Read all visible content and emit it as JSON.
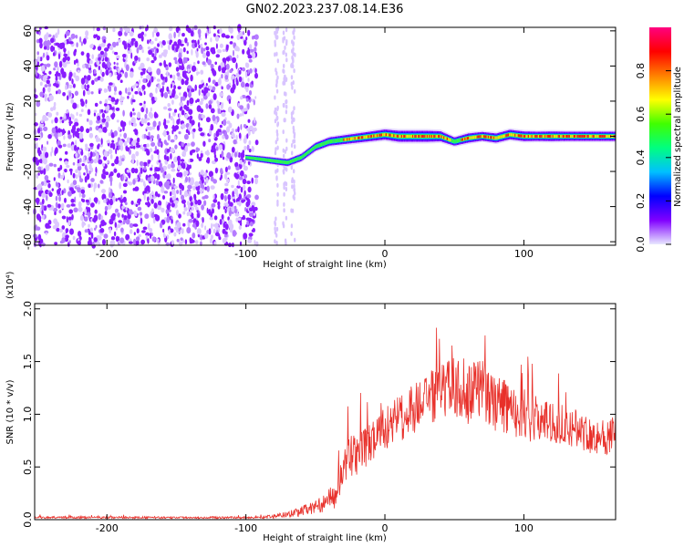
{
  "page": {
    "title": "GN02.2023.237.08.14.E36"
  },
  "chart_data": [
    {
      "type": "heatmap",
      "name": "spectrogram",
      "xlabel": "Height of straight line (km)",
      "ylabel": "Frequency (Hz)",
      "xlim": [
        -252,
        166
      ],
      "ylim": [
        -62,
        62
      ],
      "xticks": [
        -200,
        -100,
        0,
        100
      ],
      "yticks": [
        -60,
        -40,
        -20,
        0,
        20,
        40,
        60
      ],
      "colorbar": {
        "label": "Normalized spectral amplitude",
        "range": [
          0,
          1
        ],
        "ticks": [
          "0.0",
          "0.2",
          "0.4",
          "0.6",
          "0.8"
        ],
        "colormap": [
          "#e8e8ff",
          "#8000ff",
          "#0000ff",
          "#00c0ff",
          "#00ff80",
          "#40ff00",
          "#ffff00",
          "#ff8000",
          "#ff0000",
          "#ff0080"
        ]
      },
      "noise_region": {
        "x": [
          -252,
          -92
        ],
        "amplitude": 0.2
      },
      "ridge": {
        "x": [
          -100,
          -90,
          -80,
          -70,
          -60,
          -50,
          -40,
          -30,
          -20,
          -10,
          0,
          10,
          20,
          30,
          40,
          50,
          60,
          70,
          80,
          90,
          100,
          110,
          120,
          130,
          140,
          150,
          166
        ],
        "frequency": [
          -12,
          -13,
          -14,
          -15,
          -12,
          -6,
          -3,
          -2,
          -1,
          0,
          1,
          0,
          0,
          0,
          0,
          -3,
          -1,
          0,
          -1,
          1,
          0,
          0,
          0,
          0,
          0,
          0,
          0
        ],
        "amplitude": [
          0.35,
          0.45,
          0.5,
          0.55,
          0.6,
          0.65,
          0.7,
          0.75,
          0.8,
          0.85,
          0.9,
          1.0,
          1.0,
          1.0,
          0.9,
          0.7,
          0.8,
          0.75,
          0.8,
          0.85,
          0.85,
          0.8,
          0.85,
          0.8,
          0.8,
          0.8,
          0.8
        ]
      }
    },
    {
      "type": "line",
      "name": "snr",
      "xlabel": "Height of straight line (km)",
      "ylabel": "SNR (10 * v/v)",
      "y_multiplier": "(x10⁴)",
      "xlim": [
        -252,
        166
      ],
      "ylim": [
        0,
        2.05
      ],
      "xticks": [
        -200,
        -100,
        0,
        100
      ],
      "yticks": [
        "0.0",
        "0.5",
        "1.0",
        "1.5",
        "2.0"
      ],
      "ytick_values": [
        0,
        0.5,
        1.0,
        1.5,
        2.0
      ],
      "color": "#e8302a",
      "series": [
        {
          "x": [
            -252,
            -200,
            -150,
            -100,
            -90,
            -80,
            -70,
            -60,
            -50,
            -45,
            -40,
            -35,
            -30,
            -25,
            -20,
            -15,
            -10,
            -5,
            0,
            10,
            20,
            30,
            40,
            50,
            60,
            70,
            80,
            90,
            100,
            110,
            120,
            130,
            140,
            150,
            160,
            166
          ],
          "values": [
            0.02,
            0.02,
            0.02,
            0.02,
            0.02,
            0.03,
            0.05,
            0.08,
            0.12,
            0.15,
            0.2,
            0.22,
            0.5,
            0.6,
            0.62,
            0.68,
            0.72,
            0.78,
            0.85,
            0.95,
            1.05,
            1.15,
            1.2,
            1.25,
            1.25,
            1.22,
            1.1,
            1.05,
            1.0,
            0.95,
            0.92,
            0.9,
            0.85,
            0.8,
            0.78,
            0.8
          ]
        }
      ],
      "noise_amplitude": [
        0.01,
        0.01,
        0.01,
        0.01,
        0.01,
        0.02,
        0.03,
        0.05,
        0.06,
        0.08,
        0.1,
        0.12,
        0.15,
        0.2,
        0.2,
        0.2,
        0.2,
        0.22,
        0.22,
        0.22,
        0.25,
        0.25,
        0.28,
        0.3,
        0.35,
        0.3,
        0.28,
        0.25,
        0.25,
        0.22,
        0.2,
        0.2,
        0.18,
        0.18,
        0.18,
        0.18
      ]
    }
  ]
}
